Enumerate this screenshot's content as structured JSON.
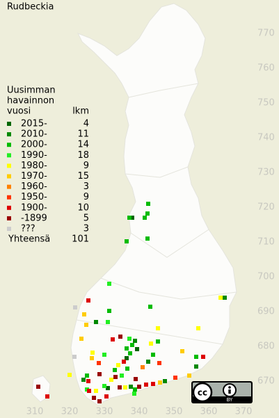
{
  "title": "Rudbeckia",
  "legend": {
    "heading": [
      "Uusimman",
      "havainnon",
      "vuosi"
    ],
    "count_heading": "lkm",
    "rows": [
      {
        "label": "2015-",
        "count": 4,
        "color": "#006600",
        "points": [
          [
            338,
            717
          ],
          [
            339.4,
            679.2
          ],
          [
            336.4,
            676.6
          ],
          [
            331,
            668
          ]
        ]
      },
      {
        "label": "2010-",
        "count": 11,
        "color": "#008800",
        "points": [
          [
            364.6,
            694
          ],
          [
            327.6,
            687
          ],
          [
            338.8,
            681.6
          ],
          [
            342.6,
            675.6
          ],
          [
            324,
            670.4
          ],
          [
            337.6,
            668.4
          ],
          [
            347.4,
            670
          ],
          [
            356.4,
            674.2
          ]
        ]
      },
      {
        "label": "2000-",
        "count": 14,
        "color": "#00bb00",
        "points": [
          [
            342.6,
            721
          ],
          [
            342.4,
            718.2
          ],
          [
            341.6,
            717
          ],
          [
            336.4,
            710.2
          ],
          [
            342.4,
            711
          ],
          [
            343.2,
            691.4
          ],
          [
            331.4,
            690.2
          ],
          [
            338,
            680.4
          ],
          [
            336.4,
            679.4
          ],
          [
            345.4,
            681.4
          ],
          [
            356.4,
            677
          ],
          [
            337.4,
            678
          ],
          [
            344,
            677.6
          ],
          [
            325,
            671.6
          ],
          [
            336.6,
            673.6
          ],
          [
            338.8,
            667.6
          ],
          [
            333,
            673.2
          ],
          [
            337.2,
            717
          ]
        ]
      },
      {
        "label": "1990-",
        "count": 18,
        "color": "#22ee22",
        "points": [
          [
            331.4,
            698
          ],
          [
            331,
            687
          ],
          [
            337.2,
            682.2
          ],
          [
            330,
            677.6
          ],
          [
            335,
            671.6
          ],
          [
            330,
            668.6
          ],
          [
            338.6,
            666.4
          ],
          [
            325,
            667.6
          ]
        ]
      },
      {
        "label": "1980-",
        "count": 9,
        "color": "#ffff00",
        "points": [
          [
            363.4,
            694
          ],
          [
            345.4,
            685.2
          ],
          [
            357,
            685.2
          ],
          [
            326.6,
            678.2
          ],
          [
            343.4,
            680.8
          ],
          [
            332,
            670.4
          ],
          [
            336,
            668.2
          ],
          [
            327.6,
            667.2
          ],
          [
            334,
            674.6
          ],
          [
            320,
            671.8
          ]
        ]
      },
      {
        "label": "1970-",
        "count": 15,
        "color": "#ffcc00",
        "points": [
          [
            324.2,
            689.2
          ],
          [
            324.8,
            686.2
          ],
          [
            323.4,
            682.2
          ],
          [
            352.4,
            678.6
          ],
          [
            326.4,
            676.6
          ],
          [
            346,
            669.6
          ],
          [
            354.4,
            671.6
          ]
        ]
      },
      {
        "label": "1960-",
        "count": 3,
        "color": "#ff8000",
        "points": [
          [
            341,
            674
          ]
        ]
      },
      {
        "label": "1950-",
        "count": 9,
        "color": "#ff3300",
        "points": [
          [
            345.8,
            675.2
          ],
          [
            328.4,
            675.2
          ],
          [
            350.4,
            671
          ]
        ]
      },
      {
        "label": "1900-",
        "count": 10,
        "color": "#dd0000",
        "points": [
          [
            325.4,
            693.2
          ],
          [
            332.4,
            682
          ],
          [
            358.4,
            677
          ],
          [
            335.6,
            675.6
          ],
          [
            325.4,
            670
          ],
          [
            342,
            669
          ],
          [
            344,
            669.2
          ],
          [
            325.6,
            667.2
          ],
          [
            330.6,
            665.6
          ],
          [
            313.6,
            665.6
          ]
        ]
      },
      {
        "label": "-1899",
        "count": 5,
        "color": "#990000",
        "points": [
          [
            334.6,
            682.8
          ],
          [
            328.6,
            672
          ],
          [
            333.2,
            671.2
          ],
          [
            339,
            670.6
          ],
          [
            334.4,
            668.2
          ],
          [
            340,
            668.4
          ],
          [
            327,
            665.2
          ],
          [
            328.6,
            664.2
          ],
          [
            311,
            668.4
          ]
        ]
      },
      {
        "label": "???",
        "count": 3,
        "color": "#cccccc",
        "points": [
          [
            321.6,
            691.2
          ],
          [
            321.4,
            677
          ]
        ]
      }
    ],
    "total_label": "Yhteensä",
    "total": 101
  },
  "map": {
    "xticks": [
      310,
      320,
      330,
      340,
      350,
      360,
      370
    ],
    "yticks": [
      770,
      760,
      750,
      740,
      730,
      720,
      710,
      700,
      690,
      680,
      670
    ]
  },
  "badge": {
    "cc": "cc",
    "by": "BY"
  }
}
